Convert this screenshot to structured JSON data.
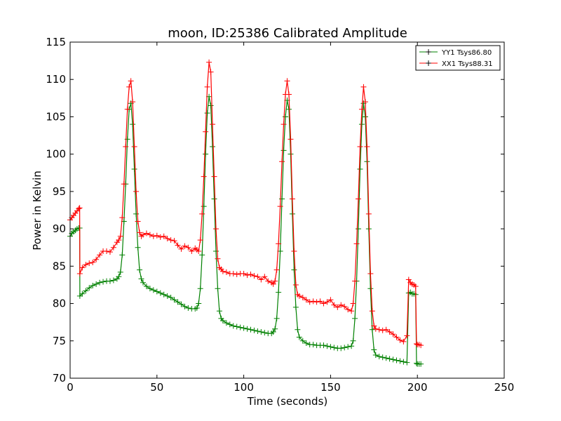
{
  "chart_data": {
    "type": "line",
    "title": "moon, ID:25386 Calibrated Amplitude",
    "xlabel": "Time (seconds)",
    "ylabel": "Power in Kelvin",
    "xlim": [
      0,
      250
    ],
    "ylim": [
      70,
      115
    ],
    "x_ticks": [
      "0",
      "50",
      "100",
      "150",
      "200",
      "250"
    ],
    "y_ticks": [
      "70",
      "75",
      "80",
      "85",
      "90",
      "95",
      "100",
      "105",
      "110",
      "115"
    ],
    "grid": false,
    "legend_position": "top-right",
    "series": [
      {
        "name": "YY1 Tsys86.80",
        "color": "#008000",
        "marker": "+",
        "points": [
          [
            0,
            89
          ],
          [
            1,
            89.4
          ],
          [
            2,
            89.6
          ],
          [
            3,
            89.8
          ],
          [
            4,
            90.0
          ],
          [
            5,
            90.1
          ],
          [
            5.5,
            90.1
          ],
          [
            5.6,
            81.0
          ],
          [
            7,
            81.3
          ],
          [
            9,
            81.7
          ],
          [
            11,
            82.1
          ],
          [
            13,
            82.4
          ],
          [
            15,
            82.6
          ],
          [
            17,
            82.8
          ],
          [
            19,
            82.9
          ],
          [
            21,
            83.0
          ],
          [
            23,
            83.0
          ],
          [
            25,
            83.1
          ],
          [
            27,
            83.3
          ],
          [
            28,
            83.6
          ],
          [
            29,
            84.2
          ],
          [
            30,
            86.5
          ],
          [
            31,
            91
          ],
          [
            32,
            96
          ],
          [
            33,
            102
          ],
          [
            34,
            106.0
          ],
          [
            35,
            106.8
          ],
          [
            36,
            104
          ],
          [
            37,
            98
          ],
          [
            38,
            92
          ],
          [
            39,
            87.5
          ],
          [
            40,
            84.5
          ],
          [
            41,
            83.3
          ],
          [
            42,
            82.8
          ],
          [
            44,
            82.3
          ],
          [
            46,
            82.0
          ],
          [
            48,
            81.8
          ],
          [
            50,
            81.6
          ],
          [
            52,
            81.4
          ],
          [
            54,
            81.2
          ],
          [
            56,
            81.0
          ],
          [
            58,
            80.8
          ],
          [
            60,
            80.5
          ],
          [
            62,
            80.2
          ],
          [
            64,
            79.9
          ],
          [
            66,
            79.6
          ],
          [
            68,
            79.4
          ],
          [
            70,
            79.3
          ],
          [
            72,
            79.3
          ],
          [
            73,
            79.4
          ],
          [
            74,
            80.0
          ],
          [
            75,
            82
          ],
          [
            76,
            86.5
          ],
          [
            77,
            93
          ],
          [
            78,
            100
          ],
          [
            79,
            105.5
          ],
          [
            80,
            107.7
          ],
          [
            81,
            106.5
          ],
          [
            82,
            101
          ],
          [
            83,
            94
          ],
          [
            84,
            87
          ],
          [
            85,
            82
          ],
          [
            86,
            79
          ],
          [
            87,
            78.0
          ],
          [
            88,
            77.7
          ],
          [
            90,
            77.4
          ],
          [
            92,
            77.2
          ],
          [
            94,
            77.0
          ],
          [
            96,
            76.9
          ],
          [
            98,
            76.8
          ],
          [
            100,
            76.7
          ],
          [
            102,
            76.6
          ],
          [
            104,
            76.5
          ],
          [
            106,
            76.4
          ],
          [
            108,
            76.3
          ],
          [
            110,
            76.2
          ],
          [
            112,
            76.1
          ],
          [
            114,
            76.0
          ],
          [
            116,
            76.0
          ],
          [
            117,
            76.2
          ],
          [
            118,
            76.6
          ],
          [
            119,
            78
          ],
          [
            120,
            81.5
          ],
          [
            121,
            87
          ],
          [
            122,
            94
          ],
          [
            123,
            100.5
          ],
          [
            124,
            105
          ],
          [
            125,
            107.2
          ],
          [
            126,
            106
          ],
          [
            127,
            100
          ],
          [
            128,
            92
          ],
          [
            129,
            84.5
          ],
          [
            130,
            79.5
          ],
          [
            131,
            76.5
          ],
          [
            132,
            75.5
          ],
          [
            134,
            75.0
          ],
          [
            136,
            74.7
          ],
          [
            138,
            74.5
          ],
          [
            140,
            74.5
          ],
          [
            142,
            74.4
          ],
          [
            144,
            74.4
          ],
          [
            146,
            74.4
          ],
          [
            148,
            74.3
          ],
          [
            150,
            74.2
          ],
          [
            152,
            74.1
          ],
          [
            154,
            74.0
          ],
          [
            156,
            74.0
          ],
          [
            158,
            74.1
          ],
          [
            160,
            74.2
          ],
          [
            162,
            74.3
          ],
          [
            163,
            75.0
          ],
          [
            164,
            78
          ],
          [
            165,
            83
          ],
          [
            166,
            90
          ],
          [
            167,
            98
          ],
          [
            168,
            104
          ],
          [
            169,
            106.8
          ],
          [
            170,
            105
          ],
          [
            171,
            99
          ],
          [
            172,
            90
          ],
          [
            173,
            82
          ],
          [
            174,
            76.5
          ],
          [
            175,
            73.8
          ],
          [
            176,
            73.1
          ],
          [
            178,
            72.9
          ],
          [
            180,
            72.8
          ],
          [
            182,
            72.7
          ],
          [
            184,
            72.6
          ],
          [
            186,
            72.5
          ],
          [
            188,
            72.4
          ],
          [
            190,
            72.3
          ],
          [
            192,
            72.2
          ],
          [
            194,
            72.1
          ],
          [
            195,
            81.4
          ],
          [
            196,
            81.5
          ],
          [
            197,
            81.3
          ],
          [
            198,
            81.3
          ],
          [
            199,
            81.2
          ],
          [
            199.5,
            72.0
          ],
          [
            200,
            71.9
          ],
          [
            201,
            71.9
          ],
          [
            202,
            71.9
          ]
        ]
      },
      {
        "name": "XX1 Tsys88.31",
        "color": "#ff0000",
        "marker": "+",
        "points": [
          [
            0,
            91.2
          ],
          [
            1,
            91.5
          ],
          [
            2,
            91.8
          ],
          [
            3,
            92.1
          ],
          [
            4,
            92.4
          ],
          [
            5,
            92.7
          ],
          [
            5.5,
            92.8
          ],
          [
            5.6,
            84.0
          ],
          [
            7,
            84.8
          ],
          [
            9,
            85.2
          ],
          [
            11,
            85.4
          ],
          [
            13,
            85.5
          ],
          [
            15,
            85.9
          ],
          [
            17,
            86.5
          ],
          [
            19,
            87.0
          ],
          [
            21,
            87.0
          ],
          [
            23,
            86.9
          ],
          [
            25,
            87.5
          ],
          [
            27,
            88.2
          ],
          [
            28,
            88.5
          ],
          [
            29,
            89.0
          ],
          [
            30,
            91.5
          ],
          [
            31,
            96
          ],
          [
            32,
            101
          ],
          [
            33,
            106
          ],
          [
            34,
            109.0
          ],
          [
            35,
            109.8
          ],
          [
            36,
            107
          ],
          [
            37,
            101
          ],
          [
            38,
            95
          ],
          [
            39,
            91
          ],
          [
            40,
            89.5
          ],
          [
            41,
            89.0
          ],
          [
            42,
            89.2
          ],
          [
            44,
            89.4
          ],
          [
            46,
            89.2
          ],
          [
            48,
            89.0
          ],
          [
            50,
            89.1
          ],
          [
            52,
            88.9
          ],
          [
            54,
            89.0
          ],
          [
            56,
            88.7
          ],
          [
            58,
            88.5
          ],
          [
            60,
            88.4
          ],
          [
            62,
            87.8
          ],
          [
            64,
            87.3
          ],
          [
            66,
            87.7
          ],
          [
            68,
            87.5
          ],
          [
            70,
            87.0
          ],
          [
            72,
            87.4
          ],
          [
            73,
            87.2
          ],
          [
            74,
            87.0
          ],
          [
            75,
            88.5
          ],
          [
            76,
            92
          ],
          [
            77,
            97
          ],
          [
            78,
            103
          ],
          [
            79,
            109
          ],
          [
            80,
            112.3
          ],
          [
            81,
            111
          ],
          [
            82,
            104
          ],
          [
            83,
            97
          ],
          [
            84,
            90
          ],
          [
            85,
            86
          ],
          [
            86,
            84.8
          ],
          [
            87,
            84.6
          ],
          [
            88,
            84.3
          ],
          [
            90,
            84.2
          ],
          [
            92,
            84.0
          ],
          [
            94,
            84.0
          ],
          [
            96,
            83.9
          ],
          [
            98,
            84.0
          ],
          [
            100,
            84.0
          ],
          [
            102,
            83.8
          ],
          [
            104,
            83.9
          ],
          [
            106,
            83.7
          ],
          [
            108,
            83.6
          ],
          [
            110,
            83.2
          ],
          [
            112,
            83.6
          ],
          [
            114,
            83.0
          ],
          [
            116,
            82.8
          ],
          [
            117,
            82.6
          ],
          [
            118,
            83.0
          ],
          [
            119,
            84.5
          ],
          [
            120,
            88
          ],
          [
            121,
            93
          ],
          [
            122,
            99
          ],
          [
            123,
            104
          ],
          [
            124,
            108
          ],
          [
            125,
            109.8
          ],
          [
            126,
            108
          ],
          [
            127,
            102
          ],
          [
            128,
            94
          ],
          [
            129,
            87
          ],
          [
            130,
            82.5
          ],
          [
            131,
            81.2
          ],
          [
            132,
            81.0
          ],
          [
            134,
            80.8
          ],
          [
            136,
            80.5
          ],
          [
            138,
            80.2
          ],
          [
            140,
            80.3
          ],
          [
            142,
            80.2
          ],
          [
            144,
            80.3
          ],
          [
            146,
            80.0
          ],
          [
            148,
            80.2
          ],
          [
            150,
            80.5
          ],
          [
            152,
            79.8
          ],
          [
            154,
            79.5
          ],
          [
            156,
            79.8
          ],
          [
            158,
            79.6
          ],
          [
            160,
            79.2
          ],
          [
            162,
            79.0
          ],
          [
            163,
            80.0
          ],
          [
            164,
            83
          ],
          [
            165,
            88
          ],
          [
            166,
            94
          ],
          [
            167,
            101
          ],
          [
            168,
            106
          ],
          [
            169,
            109
          ],
          [
            170,
            107
          ],
          [
            171,
            101
          ],
          [
            172,
            92
          ],
          [
            173,
            84
          ],
          [
            174,
            79
          ],
          [
            175,
            77.0
          ],
          [
            176,
            76.6
          ],
          [
            178,
            76.5
          ],
          [
            180,
            76.4
          ],
          [
            182,
            76.5
          ],
          [
            184,
            76.2
          ],
          [
            186,
            75.9
          ],
          [
            188,
            75.5
          ],
          [
            190,
            75.1
          ],
          [
            192,
            74.9
          ],
          [
            194,
            75.7
          ],
          [
            195,
            83.2
          ],
          [
            196,
            82.8
          ],
          [
            197,
            82.6
          ],
          [
            198,
            82.5
          ],
          [
            199,
            82.3
          ],
          [
            199.5,
            74.6
          ],
          [
            200,
            74.5
          ],
          [
            201,
            74.5
          ],
          [
            202,
            74.4
          ]
        ]
      }
    ]
  }
}
